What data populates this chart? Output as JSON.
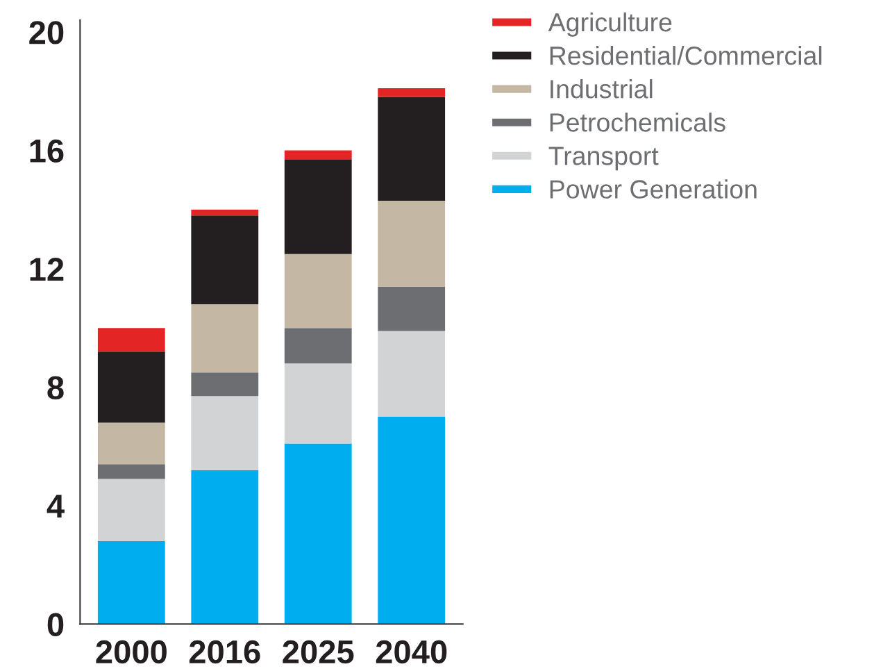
{
  "chart_data": {
    "type": "bar",
    "stacked": true,
    "categories": [
      "2000",
      "2016",
      "2025",
      "2040"
    ],
    "series": [
      {
        "name": "Power Generation",
        "color": "#00aeef",
        "values": [
          2.8,
          5.2,
          6.1,
          7.0
        ]
      },
      {
        "name": "Transport",
        "color": "#d1d3d4",
        "values": [
          2.1,
          2.5,
          2.7,
          2.9
        ]
      },
      {
        "name": "Petrochemicals",
        "color": "#6d6e71",
        "values": [
          0.5,
          0.8,
          1.2,
          1.5
        ]
      },
      {
        "name": "Industrial",
        "color": "#c4b8a4",
        "values": [
          1.4,
          2.3,
          2.5,
          2.9
        ]
      },
      {
        "name": "Residential/Commercial",
        "color": "#231f20",
        "values": [
          2.4,
          3.0,
          3.2,
          3.5
        ]
      },
      {
        "name": "Agriculture",
        "color": "#e32526",
        "values": [
          0.8,
          0.2,
          0.3,
          0.3
        ]
      }
    ],
    "ylim": [
      0,
      20.4
    ],
    "yticks": [
      0,
      4,
      8,
      12,
      16,
      20
    ],
    "grid": false,
    "legend": "top right"
  }
}
